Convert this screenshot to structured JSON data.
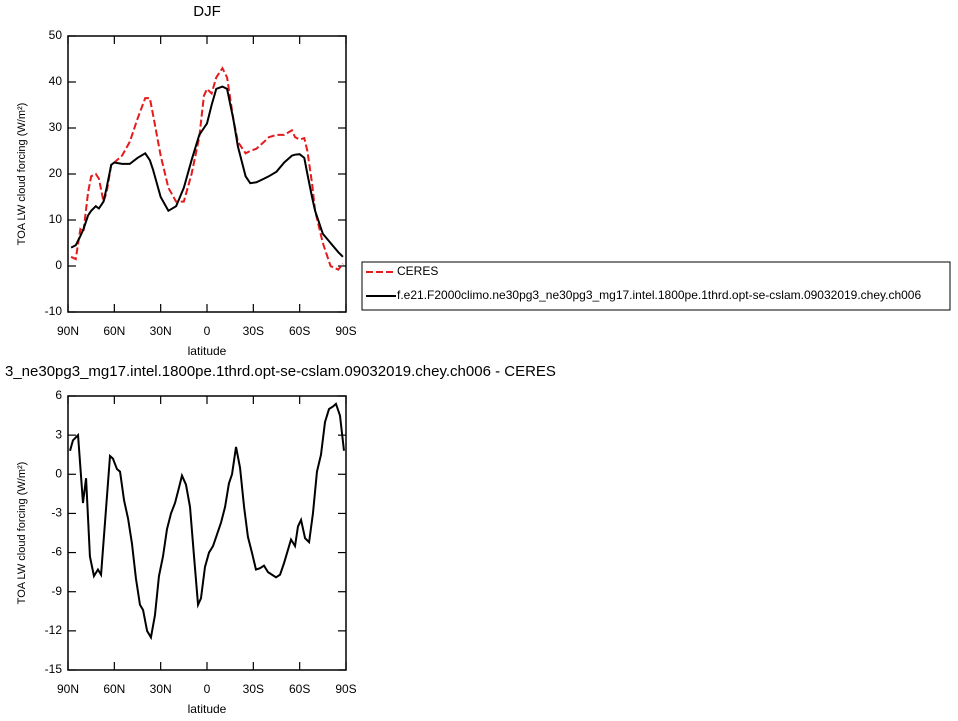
{
  "chart_data": [
    {
      "type": "line",
      "title": "DJF",
      "x_label": "latitude",
      "y_label": "TOA LW cloud forcing (W/m²)",
      "x": [
        88,
        85,
        82,
        80,
        77,
        75,
        72,
        70,
        67,
        65,
        62,
        60,
        55,
        50,
        45,
        40,
        37,
        35,
        30,
        25,
        20,
        15,
        10,
        5,
        2,
        0,
        -3,
        -6,
        -10,
        -13,
        -17,
        -20,
        -25,
        -28,
        -32,
        -37,
        -40,
        -45,
        -50,
        -55,
        -57,
        -60,
        -63,
        -65,
        -68,
        -70,
        -75,
        -80,
        -85,
        -88
      ],
      "series": [
        {
          "name": "CERES",
          "color": "#e41a1c",
          "line_style": "dashed",
          "values": [
            2,
            1.5,
            8,
            7.5,
            16,
            19.5,
            20,
            19,
            14,
            16,
            22,
            22.5,
            24,
            27,
            32,
            36.5,
            36.5,
            33,
            24,
            17,
            14,
            14,
            20,
            28,
            37,
            38.5,
            37.5,
            41,
            43,
            41,
            32,
            27,
            24.5,
            25,
            25.5,
            27,
            28,
            28.5,
            28.5,
            29.5,
            28,
            27.5,
            27.8,
            25,
            18,
            12,
            5,
            0,
            -0.8,
            0.5
          ]
        },
        {
          "name": "f.e21.F2000climo.ne30pg3_ne30pg3_mg17.intel.1800pe.1thrd.opt-se-cslam.09032019.chey.ch006",
          "color": "#000000",
          "line_style": "solid",
          "values": [
            4,
            4.5,
            6.5,
            8,
            11,
            12,
            13,
            12.5,
            14,
            17,
            22,
            22.5,
            22.2,
            22.2,
            23.5,
            24.5,
            23,
            21,
            15,
            12,
            13,
            17,
            23,
            28.5,
            30,
            31,
            35,
            38.5,
            39,
            38.5,
            32,
            26,
            19.5,
            18,
            18.2,
            19,
            19.5,
            20.5,
            22.5,
            24,
            24.2,
            24.3,
            23.5,
            20,
            15,
            12,
            7,
            5,
            3,
            2
          ]
        }
      ],
      "xlim": [
        90,
        -90
      ],
      "xticks": [
        {
          "value": 90,
          "label": "90N"
        },
        {
          "value": 60,
          "label": "60N"
        },
        {
          "value": 30,
          "label": "30N"
        },
        0,
        {
          "value": -30,
          "label": "30S"
        },
        {
          "value": -60,
          "label": "60S"
        },
        {
          "value": -90,
          "label": "90S"
        }
      ],
      "ylim": [
        -10,
        50
      ],
      "yticks": [
        -10,
        0,
        10,
        20,
        30,
        40,
        50
      ],
      "legend": "right"
    },
    {
      "type": "line",
      "title": "3_ne30pg3_mg17.intel.1800pe.1thrd.opt-se-cslam.09032019.chey.ch006 - CERES",
      "x_label": "latitude",
      "y_label": "TOA LW cloud forcing (W/m²)",
      "x": [
        88.7,
        86.8,
        83.5,
        80.3,
        78.3,
        75.8,
        73.2,
        70.6,
        68.6,
        62.8,
        60.9,
        58.3,
        56.3,
        53.7,
        51.1,
        48.6,
        46,
        43.4,
        41.4,
        38.8,
        36.3,
        33.7,
        31.1,
        28.5,
        25.9,
        23.3,
        20.7,
        18.1,
        16.2,
        13.6,
        11,
        8.4,
        5.8,
        3.9,
        1.3,
        -1.3,
        -3.9,
        -6.5,
        -9.1,
        -11.7,
        -14.2,
        -16.2,
        -18.8,
        -21.4,
        -24,
        -26.5,
        -29.1,
        -31.7,
        -34.3,
        -36.9,
        -39.5,
        -42.1,
        -44.7,
        -47.3,
        -49.9,
        -52.4,
        -54.4,
        -57,
        -58.9,
        -60.9,
        -63.5,
        -66.1,
        -68.6,
        -71.2,
        -73.8,
        -76.4,
        -79,
        -81.6,
        -83.5,
        -86.1,
        -88.7
      ],
      "series": [
        {
          "color": "#000000",
          "line_style": "solid",
          "values": [
            1.8,
            2.6,
            3,
            -2.2,
            -0.3,
            -6.3,
            -7.8,
            -7.3,
            -7.7,
            1.4,
            1.2,
            0.4,
            0.2,
            -2,
            -3.4,
            -5.3,
            -8,
            -10,
            -10.4,
            -12,
            -12.5,
            -10.8,
            -7.8,
            -6.3,
            -4.2,
            -3,
            -2.2,
            -1,
            -0.1,
            -0.8,
            -2.5,
            -6.3,
            -10,
            -9.5,
            -7.1,
            -6,
            -5.5,
            -4.6,
            -3.7,
            -2.5,
            -0.7,
            0,
            2.1,
            0.5,
            -2.5,
            -4.8,
            -6,
            -7.3,
            -7.2,
            -7,
            -7.5,
            -7.7,
            -7.9,
            -7.7,
            -6.8,
            -5.8,
            -5,
            -5.5,
            -4,
            -3.5,
            -4.9,
            -5.2,
            -3,
            0.2,
            1.5,
            4,
            5,
            5.2,
            5.4,
            4.5,
            1.8
          ]
        }
      ],
      "xlim": [
        90,
        -90
      ],
      "xticks": [
        {
          "value": 90,
          "label": "90N"
        },
        {
          "value": 60,
          "label": "60N"
        },
        {
          "value": 30,
          "label": "30N"
        },
        0,
        {
          "value": -30,
          "label": "30S"
        },
        {
          "value": -60,
          "label": "60S"
        },
        {
          "value": -90,
          "label": "90S"
        }
      ],
      "ylim": [
        -15,
        6
      ],
      "yticks": [
        -15,
        -12,
        -9,
        -6,
        -3,
        0,
        3,
        6
      ]
    }
  ]
}
